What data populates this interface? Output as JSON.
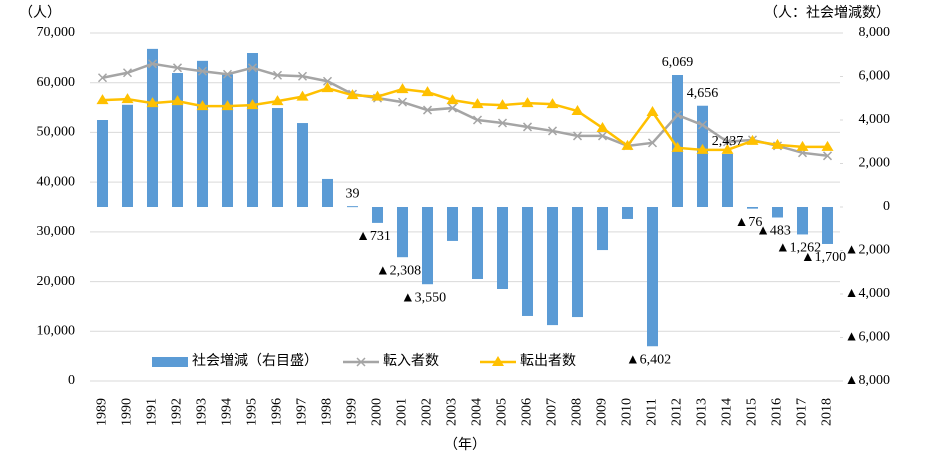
{
  "chart_data": {
    "type": "combo",
    "y_label": "（人）",
    "y2_label": "（人：社会増減数）",
    "x_label": "（年）",
    "categories": [
      "1989",
      "1990",
      "1991",
      "1992",
      "1993",
      "1994",
      "1995",
      "1996",
      "1997",
      "1998",
      "1999",
      "2000",
      "2001",
      "2002",
      "2003",
      "2004",
      "2005",
      "2006",
      "2007",
      "2008",
      "2009",
      "2010",
      "2011",
      "2012",
      "2013",
      "2014",
      "2015",
      "2016",
      "2017",
      "2018"
    ],
    "ylim": [
      0,
      70000
    ],
    "yticks": [
      0,
      {
        "value": 10000,
        "label": "10,000"
      },
      {
        "value": 20000,
        "label": "20,000"
      },
      {
        "value": 30000,
        "label": "30,000"
      },
      {
        "value": 40000,
        "label": "40,000"
      },
      {
        "value": 50000,
        "label": "50,000"
      },
      {
        "value": 60000,
        "label": "60,000"
      },
      {
        "value": 70000,
        "label": "70,000"
      }
    ],
    "y2lim": [
      -8000,
      8000
    ],
    "y2ticks": [
      {
        "value": -8000,
        "label": "▲8,000"
      },
      {
        "value": -6000,
        "label": "▲6,000"
      },
      {
        "value": -4000,
        "label": "▲4,000"
      },
      {
        "value": -2000,
        "label": "▲2,000"
      },
      0,
      {
        "value": 2000,
        "label": "2,000"
      },
      {
        "value": 4000,
        "label": "4,000"
      },
      {
        "value": 6000,
        "label": "6,000"
      },
      {
        "value": 8000,
        "label": "8,000"
      }
    ],
    "grid": true,
    "series": [
      {
        "name": "社会増減（右目盛）",
        "type": "bar",
        "axis": "y2",
        "color": "#5b9bd5",
        "values": [
          4000,
          4700,
          7270,
          6160,
          6720,
          6100,
          7080,
          4550,
          3860,
          1290,
          39,
          -731,
          -2308,
          -3550,
          -1560,
          -3310,
          -3770,
          -5010,
          -5430,
          -5060,
          -1980,
          -550,
          -6402,
          6069,
          4656,
          2437,
          -76,
          -483,
          -1262,
          -1700
        ],
        "value_labels": [
          null,
          null,
          null,
          null,
          null,
          null,
          null,
          null,
          null,
          null,
          "39",
          "▲731",
          "▲2,308",
          "▲3,550",
          null,
          null,
          null,
          null,
          null,
          null,
          null,
          null,
          "▲6,402",
          "6,069",
          "4,656",
          "2,437",
          "▲76",
          "▲483",
          "▲1,262",
          "▲1,700"
        ]
      },
      {
        "name": "転入者数",
        "type": "line",
        "marker": "x",
        "color": "#a5a5a5",
        "values": [
          61000,
          62000,
          63800,
          63000,
          62300,
          61700,
          63000,
          61500,
          61300,
          60300,
          57700,
          56900,
          56100,
          54500,
          54900,
          52500,
          51900,
          51100,
          50300,
          49300,
          49300,
          47300,
          47900,
          53500,
          51500,
          48100,
          48500,
          47300,
          45900,
          45300
        ]
      },
      {
        "name": "転出者数",
        "type": "line",
        "marker": "triangle",
        "color": "#ffc000",
        "values": [
          56500,
          56700,
          55900,
          56300,
          55300,
          55300,
          55500,
          56300,
          57200,
          58900,
          57500,
          57200,
          58700,
          58100,
          56500,
          55700,
          55500,
          55900,
          55700,
          54300,
          50900,
          47300,
          54100,
          46900,
          46500,
          46500,
          48300,
          47500,
          47100,
          47100
        ]
      }
    ]
  }
}
